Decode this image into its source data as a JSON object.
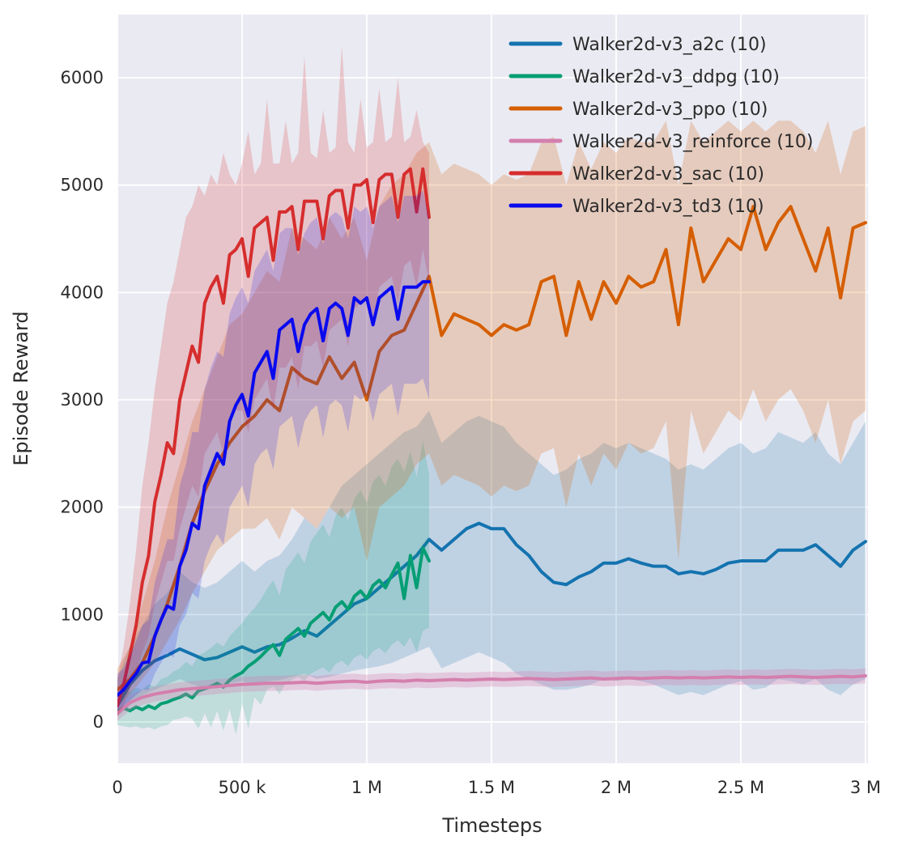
{
  "chart_data": {
    "type": "line",
    "title": "",
    "xlabel": "Timesteps",
    "ylabel": "Episode Reward",
    "grid": true,
    "legend_position": "upper right",
    "background": "#eaeaf2",
    "grid_color": "#ffffff",
    "text_color": "#2b2b2b",
    "xlim": [
      0,
      3010000
    ],
    "ylim": [
      -384,
      6588
    ],
    "xticks": [
      {
        "v": 0,
        "label": "0"
      },
      {
        "v": 500000,
        "label": "500 k"
      },
      {
        "v": 1000000,
        "label": "1 M"
      },
      {
        "v": 1500000,
        "label": "1.5 M"
      },
      {
        "v": 2000000,
        "label": "2 M"
      },
      {
        "v": 2500000,
        "label": "2.5 M"
      },
      {
        "v": 3000000,
        "label": "3 M"
      }
    ],
    "yticks": [
      {
        "v": 0,
        "label": "0"
      },
      {
        "v": 1000,
        "label": "1000"
      },
      {
        "v": 2000,
        "label": "2000"
      },
      {
        "v": 3000,
        "label": "3000"
      },
      {
        "v": 4000,
        "label": "4000"
      },
      {
        "v": 5000,
        "label": "5000"
      },
      {
        "v": 6000,
        "label": "6000"
      }
    ],
    "series": [
      {
        "name": "Walker2d-v3_a2c (10)",
        "color": "#1473af",
        "band_alpha": 0.2,
        "step": 50000,
        "values": [
          150,
          350,
          480,
          570,
          620,
          680,
          630,
          580,
          600,
          650,
          700,
          650,
          700,
          720,
          780,
          850,
          800,
          900,
          1000,
          1100,
          1150,
          1250,
          1350,
          1450,
          1550,
          1700,
          1600,
          1700,
          1800,
          1850,
          1800,
          1800,
          1650,
          1550,
          1400,
          1300,
          1280,
          1350,
          1400,
          1480,
          1480,
          1520,
          1480,
          1450,
          1450,
          1380,
          1400,
          1380,
          1420,
          1480,
          1500,
          1500,
          1500,
          1600,
          1600,
          1600,
          1650,
          1550,
          1450,
          1600,
          1680
        ],
        "lo": [
          50,
          150,
          250,
          300,
          350,
          400,
          350,
          320,
          330,
          360,
          380,
          350,
          380,
          390,
          420,
          450,
          400,
          420,
          450,
          480,
          500,
          520,
          550,
          600,
          650,
          700,
          500,
          550,
          600,
          650,
          600,
          550,
          450,
          400,
          350,
          300,
          300,
          320,
          350,
          400,
          380,
          400,
          380,
          350,
          300,
          250,
          280,
          250,
          300,
          350,
          380,
          300,
          320,
          400,
          380,
          350,
          400,
          300,
          250,
          350,
          400
        ],
        "hi": [
          400,
          700,
          900,
          1100,
          1200,
          1400,
          1300,
          1250,
          1300,
          1400,
          1500,
          1400,
          1500,
          1550,
          1700,
          1900,
          1800,
          2000,
          2200,
          2300,
          2400,
          2500,
          2600,
          2700,
          2750,
          2900,
          2600,
          2700,
          2800,
          2850,
          2800,
          2750,
          2600,
          2500,
          2400,
          2300,
          2350,
          2450,
          2500,
          2600,
          2550,
          2600,
          2550,
          2500,
          2450,
          2350,
          2400,
          2350,
          2450,
          2550,
          2600,
          2500,
          2550,
          2700,
          2650,
          2600,
          2700,
          2500,
          2400,
          2600,
          2800
        ]
      },
      {
        "name": "Walker2d-v3_ddpg (10)",
        "color": "#069e74",
        "band_alpha": 0.18,
        "step": 25000,
        "values": [
          100,
          130,
          105,
          140,
          115,
          150,
          125,
          170,
          185,
          210,
          230,
          260,
          225,
          290,
          310,
          330,
          360,
          325,
          390,
          430,
          460,
          520,
          560,
          610,
          670,
          720,
          620,
          770,
          820,
          870,
          800,
          920,
          970,
          1020,
          950,
          1070,
          1120,
          1050,
          1170,
          1220,
          1150,
          1270,
          1320,
          1250,
          1370,
          1480,
          1150,
          1550,
          1250,
          1620,
          1500
        ],
        "lo": [
          -30,
          -40,
          -50,
          -40,
          -60,
          -50,
          -70,
          -40,
          -30,
          20,
          30,
          50,
          30,
          -60,
          80,
          -50,
          100,
          -80,
          120,
          -120,
          170,
          -60,
          230,
          160,
          300,
          330,
          260,
          360,
          390,
          420,
          380,
          450,
          480,
          510,
          460,
          540,
          570,
          520,
          600,
          630,
          580,
          660,
          690,
          640,
          720,
          760,
          700,
          790,
          650,
          850,
          880
        ],
        "hi": [
          250,
          300,
          280,
          320,
          300,
          350,
          330,
          400,
          420,
          470,
          500,
          560,
          520,
          620,
          650,
          690,
          740,
          700,
          800,
          860,
          920,
          1000,
          1060,
          1140,
          1240,
          1320,
          1180,
          1420,
          1500,
          1580,
          1480,
          1680,
          1760,
          1840,
          1720,
          1920,
          2000,
          1880,
          2080,
          2160,
          2040,
          2240,
          2300,
          2200,
          2380,
          2450,
          2330,
          2520,
          2280,
          2620,
          2300
        ]
      },
      {
        "name": "Walker2d-v3_ppo (10)",
        "color": "#d55e00",
        "band_alpha": 0.22,
        "step": 50000,
        "values": [
          300,
          400,
          550,
          800,
          1100,
          1450,
          1850,
          2150,
          2400,
          2600,
          2750,
          2850,
          3000,
          2900,
          3300,
          3200,
          3150,
          3400,
          3200,
          3350,
          3000,
          3450,
          3600,
          3650,
          3900,
          4150,
          3600,
          3800,
          3750,
          3700,
          3600,
          3700,
          3650,
          3700,
          4100,
          4150,
          3600,
          4100,
          3750,
          4100,
          3900,
          4150,
          4050,
          4100,
          4400,
          3700,
          4600,
          4100,
          4300,
          4500,
          4400,
          4800,
          4400,
          4650,
          4800,
          4500,
          4200,
          4600,
          3950,
          4600,
          4650
        ],
        "lo": [
          150,
          250,
          400,
          550,
          750,
          950,
          1200,
          1400,
          1600,
          1700,
          1800,
          1800,
          1900,
          1700,
          2000,
          1900,
          1800,
          2000,
          1900,
          2000,
          1500,
          2000,
          2100,
          2200,
          2400,
          2500,
          2200,
          2300,
          2250,
          2200,
          2100,
          2200,
          2150,
          2200,
          2500,
          2550,
          2000,
          2500,
          2200,
          2500,
          2350,
          2600,
          2500,
          2550,
          2800,
          1500,
          2900,
          2500,
          2700,
          2900,
          2800,
          3100,
          2800,
          3000,
          3100,
          2900,
          2600,
          3000,
          2400,
          2800,
          2900
        ],
        "hi": [
          500,
          700,
          1100,
          1500,
          2000,
          2400,
          2800,
          3100,
          3400,
          3700,
          3800,
          4000,
          4200,
          4100,
          4600,
          4500,
          4400,
          4700,
          4500,
          4700,
          4300,
          4800,
          5000,
          5100,
          5300,
          5400,
          5100,
          5200,
          5150,
          5100,
          5000,
          5100,
          5050,
          5100,
          5400,
          5450,
          5000,
          5400,
          5150,
          5400,
          5300,
          5450,
          5400,
          5400,
          5600,
          5000,
          5600,
          5400,
          5500,
          5600,
          5500,
          5600,
          5500,
          5600,
          5600,
          5500,
          5300,
          5600,
          5100,
          5500,
          5550
        ]
      },
      {
        "name": "Walker2d-v3_reinforce (10)",
        "color": "#d47fae",
        "band_alpha": 0.3,
        "step": 50000,
        "band_delta": 70,
        "values": [
          80,
          180,
          230,
          260,
          280,
          300,
          310,
          320,
          330,
          340,
          350,
          355,
          360,
          360,
          365,
          370,
          360,
          370,
          375,
          380,
          370,
          380,
          385,
          380,
          390,
          385,
          390,
          395,
          390,
          395,
          400,
          395,
          400,
          405,
          400,
          395,
          400,
          405,
          410,
          400,
          405,
          410,
          405,
          410,
          415,
          410,
          415,
          410,
          415,
          420,
          415,
          420,
          415,
          420,
          425,
          420,
          415,
          420,
          425,
          420,
          430
        ]
      },
      {
        "name": "Walker2d-v3_sac (10)",
        "color": "#d62d2d",
        "band_alpha": 0.2,
        "step": 25000,
        "values": [
          150,
          350,
          620,
          900,
          1300,
          1550,
          2050,
          2300,
          2600,
          2500,
          3000,
          3250,
          3500,
          3350,
          3900,
          4050,
          4150,
          3900,
          4350,
          4400,
          4500,
          4150,
          4600,
          4650,
          4700,
          4300,
          4750,
          4750,
          4800,
          4400,
          4850,
          4850,
          4850,
          4500,
          4900,
          4950,
          4950,
          4600,
          5000,
          5000,
          5050,
          4650,
          5050,
          5100,
          5100,
          4700,
          5100,
          5150,
          4750,
          5150,
          4700
        ],
        "lo": [
          50,
          150,
          300,
          450,
          650,
          800,
          1100,
          1300,
          1500,
          1500,
          1800,
          2000,
          2200,
          2100,
          2500,
          2600,
          2700,
          2500,
          2800,
          2900,
          2900,
          2700,
          3000,
          3100,
          3200,
          2900,
          3300,
          3300,
          3400,
          3100,
          3500,
          3500,
          3550,
          3300,
          3650,
          3700,
          3750,
          3500,
          3850,
          3900,
          3950,
          3700,
          4050,
          4100,
          4150,
          3900,
          4250,
          4300,
          4050,
          4400,
          4100
        ],
        "hi": [
          400,
          700,
          1100,
          1600,
          2200,
          2600,
          3100,
          3500,
          3900,
          4100,
          4400,
          4700,
          4800,
          5000,
          4900,
          5100,
          5000,
          5300,
          5100,
          5000,
          5200,
          5500,
          5100,
          5200,
          5800,
          5200,
          5200,
          5600,
          5200,
          5300,
          6200,
          5300,
          5250,
          5700,
          5300,
          5350,
          6300,
          5400,
          5300,
          5800,
          5350,
          5400,
          5900,
          5400,
          5450,
          6000,
          5400,
          5450,
          5700,
          5400,
          5300
        ]
      },
      {
        "name": "Walker2d-v3_td3 (10)",
        "color": "#0a0aee",
        "band_alpha": 0.18,
        "step": 25000,
        "values": [
          250,
          300,
          380,
          450,
          550,
          560,
          800,
          950,
          1080,
          1050,
          1450,
          1600,
          1850,
          1800,
          2200,
          2350,
          2500,
          2400,
          2800,
          2950,
          3050,
          2850,
          3250,
          3350,
          3450,
          3200,
          3650,
          3700,
          3750,
          3450,
          3700,
          3800,
          3850,
          3550,
          3850,
          3900,
          3850,
          3600,
          3950,
          3900,
          3950,
          3700,
          3950,
          4000,
          4050,
          3750,
          4050,
          4050,
          4050,
          4100,
          4100
        ],
        "lo": [
          100,
          150,
          200,
          250,
          300,
          300,
          450,
          550,
          650,
          600,
          900,
          1000,
          1200,
          1150,
          1500,
          1650,
          1750,
          1650,
          2000,
          2100,
          2200,
          2000,
          2400,
          2500,
          2550,
          2350,
          2750,
          2800,
          2850,
          2550,
          2800,
          2900,
          2950,
          2650,
          2950,
          3000,
          2950,
          2700,
          3050,
          3000,
          3050,
          2800,
          3050,
          3100,
          3150,
          2850,
          3150,
          3150,
          3150,
          3200,
          3000
        ],
        "hi": [
          450,
          500,
          620,
          750,
          900,
          950,
          1300,
          1500,
          1700,
          1700,
          2200,
          2400,
          2700,
          2700,
          3100,
          3300,
          3450,
          3400,
          3800,
          3950,
          4050,
          3900,
          4200,
          4300,
          4400,
          4200,
          4550,
          4600,
          4600,
          4350,
          4550,
          4650,
          4700,
          4450,
          4700,
          4750,
          4700,
          4500,
          4800,
          4750,
          4800,
          4600,
          4800,
          4850,
          4900,
          4650,
          4900,
          4900,
          4900,
          4950,
          4700
        ]
      }
    ]
  }
}
